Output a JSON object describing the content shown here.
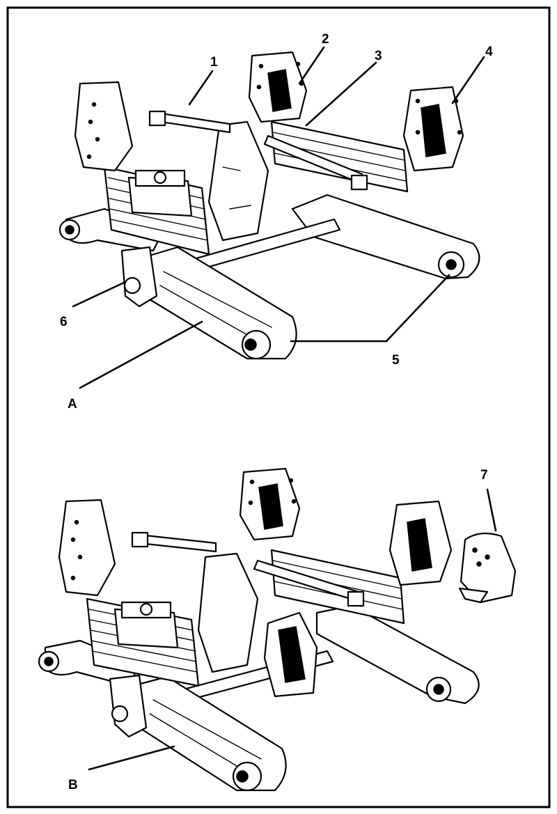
{
  "figure_a": {
    "label": "A",
    "callouts": [
      {
        "id": "1",
        "text": "1"
      },
      {
        "id": "2",
        "text": "2"
      },
      {
        "id": "3",
        "text": "3"
      },
      {
        "id": "4",
        "text": "4"
      },
      {
        "id": "5",
        "text": "5"
      },
      {
        "id": "6",
        "text": "6"
      }
    ]
  },
  "figure_b": {
    "label": "B",
    "callouts": [
      {
        "id": "7",
        "text": "7"
      }
    ]
  }
}
